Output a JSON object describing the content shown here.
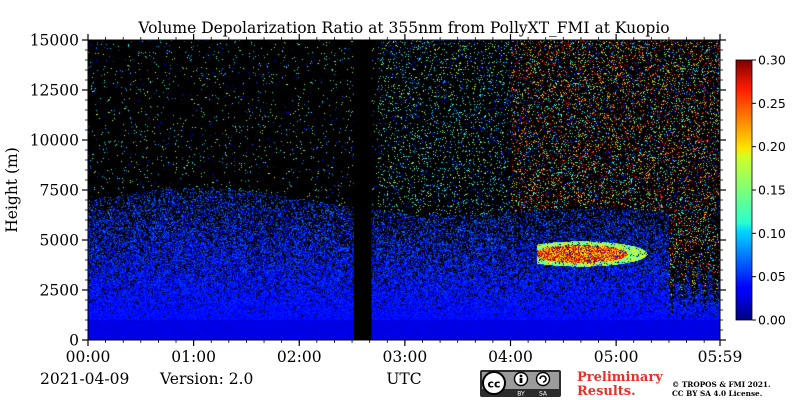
{
  "chart_data": {
    "type": "heatmap",
    "title": "Volume Depolarization Ratio at 355nm from PollyXT_FMI at Kuopio",
    "xlabel": "UTC",
    "ylabel": "Height (m)",
    "xlim": [
      "00:00",
      "05:59"
    ],
    "xlim_minutes": [
      0,
      359
    ],
    "ylim": [
      0,
      15000
    ],
    "x_ticks": [
      "00:00",
      "01:00",
      "02:00",
      "03:00",
      "04:00",
      "05:00",
      "05:59"
    ],
    "y_ticks": [
      "0",
      "2500",
      "5000",
      "7500",
      "10000",
      "12500",
      "15000"
    ],
    "x_tick_values": [
      0,
      60,
      120,
      180,
      240,
      300,
      359
    ],
    "y_tick_values": [
      0,
      2500,
      5000,
      7500,
      10000,
      12500,
      15000
    ],
    "colorbar": {
      "colormap": "jet",
      "range": [
        0.0,
        0.3
      ],
      "ticks": [
        "0.00",
        "0.05",
        "0.10",
        "0.15",
        "0.20",
        "0.25",
        "0.30"
      ],
      "tick_values": [
        0.0,
        0.05,
        0.1,
        0.15,
        0.2,
        0.25,
        0.3
      ]
    },
    "missing_data_gaps_minutes": [
      [
        151,
        161
      ]
    ],
    "features": [
      {
        "desc": "depolarizing aerosol layer",
        "time_minutes": [
          255,
          320
        ],
        "height_m": [
          3500,
          5500
        ],
        "value_approx": 0.22
      },
      {
        "desc": "boundary layer",
        "time_minutes": [
          0,
          359
        ],
        "height_m": [
          0,
          2500
        ],
        "value_approx": 0.01
      }
    ]
  },
  "footer": {
    "date": "2021-04-09",
    "version": "Version: 2.0",
    "license_badge": {
      "cc": "cc",
      "by": "BY",
      "sa": "SA"
    },
    "preliminary_line1": "Preliminary",
    "preliminary_line2": "Results.",
    "copyright_line1": "© TROPOS & FMI 2021.",
    "copyright_line2": "CC BY SA 4.0 License."
  },
  "colors": {
    "preliminary": "#e8302a",
    "badge_bg": "#2b2b2b"
  }
}
